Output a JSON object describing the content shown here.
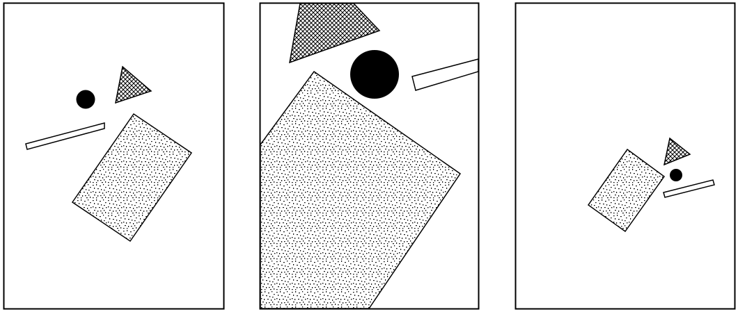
{
  "colors": {
    "background": "#ffffff",
    "stroke": "#000000",
    "fill_solid": "#000000",
    "fill_empty": "#ffffff"
  },
  "panels": [
    {
      "name": "panel-left",
      "shapes": [
        {
          "name": "hatched-triangle",
          "fill": "crosshatch"
        },
        {
          "name": "black-circle",
          "fill": "solid"
        },
        {
          "name": "long-bar",
          "fill": "empty"
        },
        {
          "name": "speckled-rectangle",
          "fill": "speckle"
        }
      ]
    },
    {
      "name": "panel-middle",
      "shapes": [
        {
          "name": "hatched-triangle",
          "fill": "crosshatch"
        },
        {
          "name": "black-circle",
          "fill": "solid"
        },
        {
          "name": "long-bar",
          "fill": "empty"
        },
        {
          "name": "speckled-rectangle",
          "fill": "speckle"
        }
      ]
    },
    {
      "name": "panel-right",
      "shapes": [
        {
          "name": "hatched-triangle",
          "fill": "crosshatch"
        },
        {
          "name": "black-circle",
          "fill": "solid"
        },
        {
          "name": "long-bar",
          "fill": "empty"
        },
        {
          "name": "speckled-rectangle",
          "fill": "speckle"
        }
      ]
    }
  ]
}
